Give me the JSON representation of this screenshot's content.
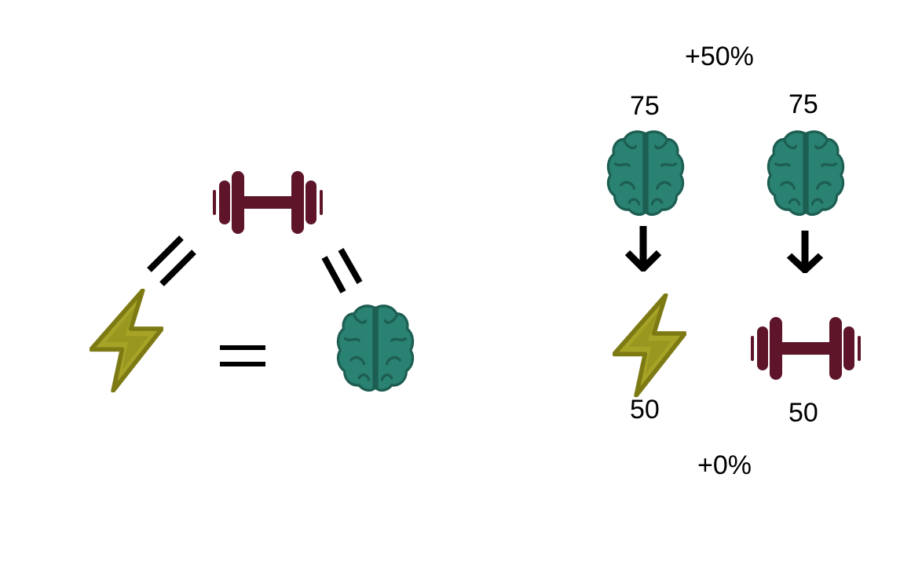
{
  "colors": {
    "brain_fill": "#2A8272",
    "brain_stroke": "#1D5E52",
    "dumbbell": "#5E1529",
    "bolt_fill": "#A6A326",
    "bolt_stroke": "#7D7A14",
    "line": "#000000"
  },
  "icons": {
    "left": [
      "dumbbell-icon",
      "lightning-icon",
      "brain-icon"
    ],
    "right": [
      "brain-icon",
      "brain-icon",
      "arrow-down-icon",
      "arrow-down-icon",
      "lightning-icon",
      "dumbbell-icon"
    ]
  },
  "right_panel": {
    "top_change": "+50%",
    "bottom_change": "+0%",
    "left_column": {
      "top_value": "75",
      "bottom_value": "50"
    },
    "right_column": {
      "top_value": "75",
      "bottom_value": "50"
    }
  }
}
